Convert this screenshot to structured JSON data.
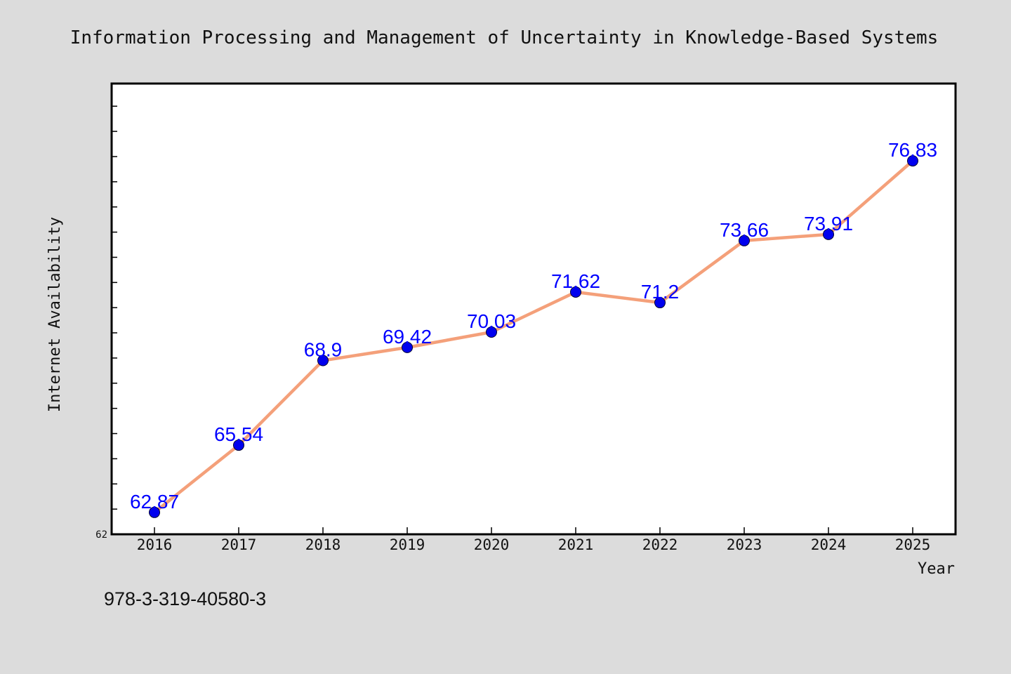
{
  "chart_data": {
    "type": "line",
    "title": "Information Processing and Management of Uncertainty in Knowledge-Based Systems",
    "xlabel": "Year",
    "ylabel": "Internet Availability",
    "categories": [
      "2016",
      "2017",
      "2018",
      "2019",
      "2020",
      "2021",
      "2022",
      "2023",
      "2024",
      "2025"
    ],
    "series": [
      {
        "values": [
          62.87,
          65.54,
          68.9,
          69.42,
          70.03,
          71.62,
          71.2,
          73.66,
          73.91,
          76.83
        ],
        "data_labels": [
          "62.87",
          "65.54",
          "68.9",
          "69.42",
          "70.03",
          "71.62",
          "71.2",
          "73.66",
          "73.91",
          "76.83"
        ]
      }
    ],
    "ylim": [
      62,
      79.9
    ],
    "y_tick_labels": [
      "62"
    ],
    "grid": false,
    "legend": "none",
    "colors": {
      "line": "#f4a07a",
      "marker": "#0000ee",
      "label": "#0000ff",
      "background": "#dcdcdc",
      "plot_background": "#ffffff"
    }
  },
  "footer": {
    "isbn": "978-3-319-40580-3"
  }
}
